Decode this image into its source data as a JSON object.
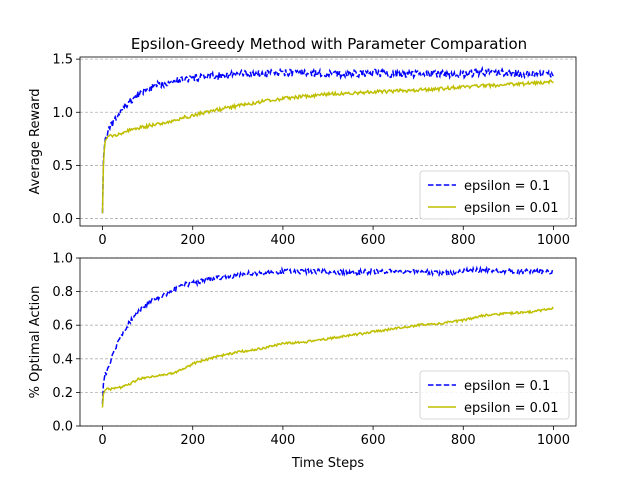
{
  "title": "Epsilon-Greedy Method with Parameter Comparation",
  "colors": {
    "series_1": "#0000ff",
    "series_2": "#bfbf00",
    "grid": "#b0b0b0"
  },
  "chart_data": [
    {
      "type": "line",
      "title": "Epsilon-Greedy Method with Parameter Comparation",
      "xlabel": "",
      "ylabel": "Average Reward",
      "xlim": [
        -50,
        1050
      ],
      "ylim": [
        -0.07,
        1.52
      ],
      "xticks": [
        "0",
        "200",
        "400",
        "600",
        "800",
        "1000"
      ],
      "yticks": [
        "0.0",
        "0.5",
        "1.0",
        "1.5"
      ],
      "grid": "horizontal dashed",
      "legend_position": "lower-right",
      "series": [
        {
          "name": "epsilon = 0.1",
          "color": "#0000ff",
          "style": "dashed",
          "x": [
            0,
            2,
            5,
            10,
            20,
            30,
            40,
            50,
            60,
            80,
            100,
            120,
            150,
            180,
            200,
            250,
            300,
            350,
            400,
            450,
            500,
            550,
            600,
            650,
            700,
            750,
            800,
            850,
            900,
            950,
            1000
          ],
          "y": [
            0.05,
            0.55,
            0.72,
            0.8,
            0.88,
            0.94,
            1.0,
            1.06,
            1.1,
            1.17,
            1.22,
            1.25,
            1.29,
            1.31,
            1.32,
            1.34,
            1.36,
            1.36,
            1.37,
            1.37,
            1.36,
            1.36,
            1.37,
            1.36,
            1.36,
            1.36,
            1.36,
            1.38,
            1.37,
            1.36,
            1.36
          ]
        },
        {
          "name": "epsilon = 0.01",
          "color": "#bfbf00",
          "style": "solid",
          "x": [
            0,
            2,
            5,
            10,
            20,
            40,
            60,
            80,
            100,
            120,
            150,
            180,
            200,
            250,
            300,
            350,
            400,
            450,
            500,
            550,
            600,
            650,
            700,
            750,
            800,
            850,
            900,
            950,
            1000
          ],
          "y": [
            0.05,
            0.5,
            0.72,
            0.76,
            0.78,
            0.8,
            0.83,
            0.85,
            0.87,
            0.89,
            0.91,
            0.95,
            0.97,
            1.02,
            1.06,
            1.1,
            1.13,
            1.15,
            1.17,
            1.18,
            1.19,
            1.2,
            1.21,
            1.22,
            1.24,
            1.25,
            1.26,
            1.27,
            1.29
          ]
        }
      ]
    },
    {
      "type": "line",
      "title": "",
      "xlabel": "Time Steps",
      "ylabel": "% Optimal Action",
      "xlim": [
        -50,
        1050
      ],
      "ylim": [
        0.0,
        1.0
      ],
      "xticks": [
        "0",
        "200",
        "400",
        "600",
        "800",
        "1000"
      ],
      "yticks": [
        "0.0",
        "0.2",
        "0.4",
        "0.6",
        "0.8",
        "1.0"
      ],
      "grid": "horizontal dashed",
      "legend_position": "lower-right",
      "series": [
        {
          "name": "epsilon = 0.1",
          "color": "#0000ff",
          "style": "dashed",
          "x": [
            0,
            2,
            5,
            10,
            20,
            30,
            40,
            50,
            60,
            80,
            100,
            120,
            150,
            180,
            200,
            250,
            300,
            350,
            400,
            450,
            500,
            550,
            600,
            650,
            700,
            750,
            800,
            850,
            900,
            950,
            1000
          ],
          "y": [
            0.13,
            0.25,
            0.3,
            0.33,
            0.4,
            0.47,
            0.53,
            0.58,
            0.62,
            0.68,
            0.73,
            0.76,
            0.8,
            0.84,
            0.85,
            0.88,
            0.9,
            0.91,
            0.92,
            0.92,
            0.92,
            0.91,
            0.92,
            0.92,
            0.92,
            0.91,
            0.92,
            0.93,
            0.92,
            0.92,
            0.92
          ]
        },
        {
          "name": "epsilon = 0.01",
          "color": "#bfbf00",
          "style": "solid",
          "x": [
            0,
            2,
            5,
            10,
            20,
            40,
            60,
            80,
            100,
            120,
            150,
            180,
            200,
            250,
            300,
            350,
            400,
            450,
            500,
            550,
            600,
            650,
            700,
            750,
            800,
            850,
            900,
            950,
            1000
          ],
          "y": [
            0.11,
            0.19,
            0.21,
            0.22,
            0.22,
            0.23,
            0.25,
            0.28,
            0.29,
            0.3,
            0.31,
            0.34,
            0.37,
            0.41,
            0.44,
            0.46,
            0.49,
            0.5,
            0.52,
            0.54,
            0.56,
            0.58,
            0.6,
            0.61,
            0.63,
            0.66,
            0.67,
            0.68,
            0.7
          ]
        }
      ]
    }
  ]
}
